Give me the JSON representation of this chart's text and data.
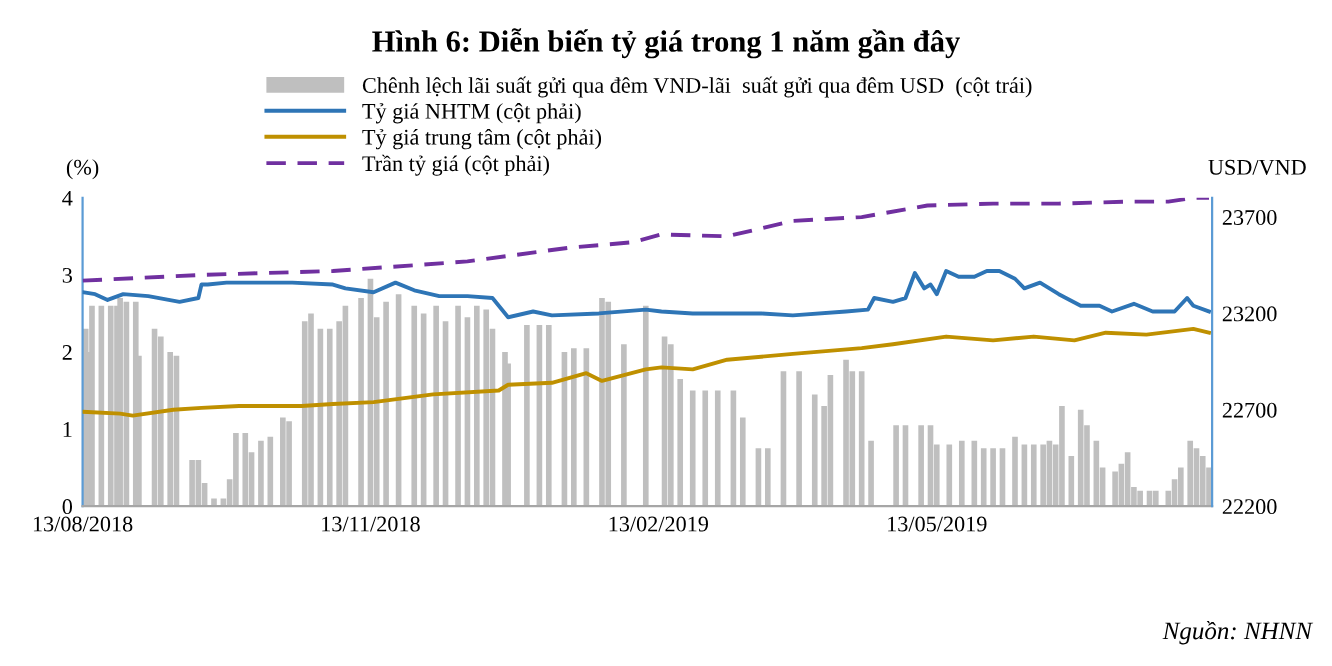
{
  "chart_data": {
    "type": "line",
    "title": "Hình 6: Diễn biến tỷ giá trong 1 năm gần đây",
    "ylabel": "(%)",
    "y2label": "USD/VND",
    "annotations": [
      "Nguồn: NHNN"
    ],
    "xlim": [
      "2018-08-13",
      "2019-08-09"
    ],
    "xticks": [
      {
        "value": "2018-08-13",
        "label": "13/08/2018"
      },
      {
        "value": "2018-11-13",
        "label": "13/11/2018"
      },
      {
        "value": "2019-02-13",
        "label": "13/02/2019"
      },
      {
        "value": "2019-05-13",
        "label": "13/05/2019"
      }
    ],
    "ylim": [
      0,
      4
    ],
    "yticks": [
      0,
      1,
      2,
      3,
      4
    ],
    "y2lim": [
      22200,
      23800
    ],
    "y2ticks": [
      22200,
      22700,
      23200,
      23700
    ],
    "legend": "top",
    "grid": false,
    "series": [
      {
        "name": "Chênh lệch lãi suất gửi qua đêm VND-lãi  suất gửi qua đêm USD  (cột trái)",
        "type": "bar",
        "axis": "y",
        "color": "#bfbfbf",
        "x": [
          "2018-08-14",
          "2018-08-15",
          "2018-08-16",
          "2018-08-19",
          "2018-08-22",
          "2018-08-24",
          "2018-08-25",
          "2018-08-27",
          "2018-08-30",
          "2018-08-31",
          "2018-09-05",
          "2018-09-07",
          "2018-09-10",
          "2018-09-12",
          "2018-09-17",
          "2018-09-19",
          "2018-09-21",
          "2018-09-24",
          "2018-09-27",
          "2018-09-29",
          "2018-10-01",
          "2018-10-04",
          "2018-10-06",
          "2018-10-09",
          "2018-10-12",
          "2018-10-16",
          "2018-10-18",
          "2018-10-23",
          "2018-10-25",
          "2018-10-28",
          "2018-10-31",
          "2018-11-03",
          "2018-11-05",
          "2018-11-10",
          "2018-11-13",
          "2018-11-15",
          "2018-11-18",
          "2018-11-22",
          "2018-11-27",
          "2018-11-30",
          "2018-12-04",
          "2018-12-07",
          "2018-12-11",
          "2018-12-14",
          "2018-12-17",
          "2018-12-20",
          "2018-12-22",
          "2018-12-26",
          "2018-12-27",
          "2019-01-02",
          "2019-01-06",
          "2019-01-09",
          "2019-01-14",
          "2019-01-17",
          "2019-01-21",
          "2019-01-26",
          "2019-01-28",
          "2019-02-02",
          "2019-02-09",
          "2019-02-15",
          "2019-02-17",
          "2019-02-20",
          "2019-02-24",
          "2019-02-28",
          "2019-03-04",
          "2019-03-09",
          "2019-03-12",
          "2019-03-17",
          "2019-03-20",
          "2019-03-25",
          "2019-03-30",
          "2019-04-04",
          "2019-04-07",
          "2019-04-09",
          "2019-04-14",
          "2019-04-16",
          "2019-04-19",
          "2019-04-22",
          "2019-04-24",
          "2019-04-30",
          "2019-05-03",
          "2019-05-08",
          "2019-05-11",
          "2019-05-13",
          "2019-05-17",
          "2019-05-21",
          "2019-05-25",
          "2019-05-28",
          "2019-05-31",
          "2019-06-03",
          "2019-06-07",
          "2019-06-10",
          "2019-06-13",
          "2019-06-16",
          "2019-06-18",
          "2019-06-20",
          "2019-06-22",
          "2019-06-25",
          "2019-06-28",
          "2019-06-30",
          "2019-07-03",
          "2019-07-05",
          "2019-07-09",
          "2019-07-11",
          "2019-07-13",
          "2019-07-15",
          "2019-07-17",
          "2019-07-20",
          "2019-07-22",
          "2019-07-26",
          "2019-07-28",
          "2019-07-30",
          "2019-08-02",
          "2019-08-04",
          "2019-08-06",
          "2019-08-08"
        ],
        "values": [
          2.3,
          2.0,
          2.6,
          2.6,
          2.6,
          2.6,
          2.7,
          2.65,
          2.65,
          1.95,
          2.3,
          2.2,
          2.0,
          1.95,
          0.6,
          0.6,
          0.3,
          0.1,
          0.1,
          0.35,
          0.95,
          0.95,
          0.7,
          0.85,
          0.9,
          1.15,
          1.1,
          2.4,
          2.5,
          2.3,
          2.3,
          2.4,
          2.6,
          2.7,
          2.95,
          2.45,
          2.65,
          2.75,
          2.6,
          2.5,
          2.6,
          2.4,
          2.6,
          2.45,
          2.6,
          2.55,
          2.3,
          2.0,
          1.85,
          2.35,
          2.35,
          2.35,
          2.0,
          2.05,
          2.05,
          2.7,
          2.65,
          2.1,
          2.6,
          2.2,
          2.1,
          1.65,
          1.5,
          1.5,
          1.5,
          1.5,
          1.15,
          0.75,
          0.75,
          1.75,
          1.75,
          1.45,
          1.3,
          1.7,
          1.9,
          1.75,
          1.75,
          0.85,
          null,
          1.05,
          1.05,
          1.05,
          1.05,
          0.8,
          0.8,
          0.85,
          0.85,
          0.75,
          0.75,
          0.75,
          0.9,
          0.8,
          0.8,
          0.8,
          0.85,
          0.8,
          1.3,
          0.65,
          1.25,
          1.05,
          0.85,
          0.5,
          0.45,
          0.55,
          0.7,
          0.25,
          0.2,
          0.2,
          0.2,
          0.2,
          0.35,
          0.5,
          0.85,
          0.75,
          0.65,
          0.5
        ]
      },
      {
        "name": "Tỷ giá NHTM (cột phải)",
        "axis": "y2",
        "color": "#2e75b6",
        "line_style": "solid",
        "x": [
          "2018-08-13",
          "2018-08-17",
          "2018-08-21",
          "2018-08-26",
          "2018-09-03",
          "2018-09-13",
          "2018-09-19",
          "2018-09-20",
          "2018-09-22",
          "2018-09-28",
          "2018-10-07",
          "2018-10-19",
          "2018-11-01",
          "2018-11-05",
          "2018-11-14",
          "2018-11-21",
          "2018-11-27",
          "2018-12-05",
          "2018-12-14",
          "2018-12-22",
          "2018-12-27",
          "2019-01-04",
          "2019-01-10",
          "2019-01-25",
          "2019-02-09",
          "2019-02-14",
          "2019-02-24",
          "2019-03-18",
          "2019-03-28",
          "2019-04-14",
          "2019-04-21",
          "2019-04-23",
          "2019-04-29",
          "2019-05-03",
          "2019-05-06",
          "2019-05-09",
          "2019-05-11",
          "2019-05-13",
          "2019-05-16",
          "2019-05-20",
          "2019-05-25",
          "2019-05-29",
          "2019-06-02",
          "2019-06-07",
          "2019-06-10",
          "2019-06-15",
          "2019-06-21",
          "2019-06-28",
          "2019-07-04",
          "2019-07-08",
          "2019-07-15",
          "2019-07-21",
          "2019-07-28",
          "2019-08-01",
          "2019-08-03",
          "2019-08-08"
        ],
        "values": [
          23310,
          23300,
          23270,
          23300,
          23290,
          23260,
          23280,
          23350,
          23350,
          23360,
          23360,
          23360,
          23350,
          23330,
          23310,
          23360,
          23320,
          23290,
          23290,
          23280,
          23180,
          23210,
          23190,
          23200,
          23220,
          23210,
          23200,
          23200,
          23190,
          23210,
          23220,
          23280,
          23260,
          23280,
          23410,
          23330,
          23350,
          23300,
          23420,
          23390,
          23390,
          23420,
          23420,
          23380,
          23330,
          23360,
          23300,
          23240,
          23240,
          23210,
          23250,
          23210,
          23210,
          23280,
          23240,
          23210
        ]
      },
      {
        "name": "Tỷ giá trung tâm (cột phải)",
        "axis": "y2",
        "color": "#bf9000",
        "line_style": "solid",
        "x": [
          "2018-08-13",
          "2018-08-25",
          "2018-08-29",
          "2018-09-11",
          "2018-09-20",
          "2018-10-02",
          "2018-10-22",
          "2018-11-01",
          "2018-11-14",
          "2018-12-03",
          "2018-12-24",
          "2018-12-27",
          "2019-01-10",
          "2019-01-21",
          "2019-01-26",
          "2019-02-09",
          "2019-02-14",
          "2019-02-24",
          "2019-03-07",
          "2019-03-28",
          "2019-04-19",
          "2019-04-29",
          "2019-05-16",
          "2019-05-31",
          "2019-06-13",
          "2019-06-26",
          "2019-07-06",
          "2019-07-19",
          "2019-08-03",
          "2019-08-08"
        ],
        "values": [
          22690,
          22680,
          22670,
          22700,
          22710,
          22720,
          22720,
          22730,
          22740,
          22780,
          22800,
          22830,
          22840,
          22890,
          22850,
          22910,
          22920,
          22910,
          22960,
          22990,
          23020,
          23040,
          23080,
          23060,
          23080,
          23060,
          23100,
          23090,
          23120,
          23100
        ]
      },
      {
        "name": "Trần tỷ giá (cột phải)",
        "axis": "y2",
        "color": "#7030a0",
        "line_style": "dashed",
        "x": [
          "2018-08-13",
          "2018-09-20",
          "2018-11-01",
          "2018-12-14",
          "2019-01-15",
          "2019-02-05",
          "2019-02-14",
          "2019-03-07",
          "2019-03-28",
          "2019-04-19",
          "2019-05-10",
          "2019-05-31",
          "2019-06-21",
          "2019-07-13",
          "2019-07-26",
          "2019-08-03",
          "2019-08-08"
        ],
        "values": [
          23370,
          23400,
          23420,
          23470,
          23540,
          23570,
          23610,
          23600,
          23680,
          23700,
          23760,
          23770,
          23770,
          23780,
          23780,
          23800,
          23800
        ]
      }
    ]
  }
}
